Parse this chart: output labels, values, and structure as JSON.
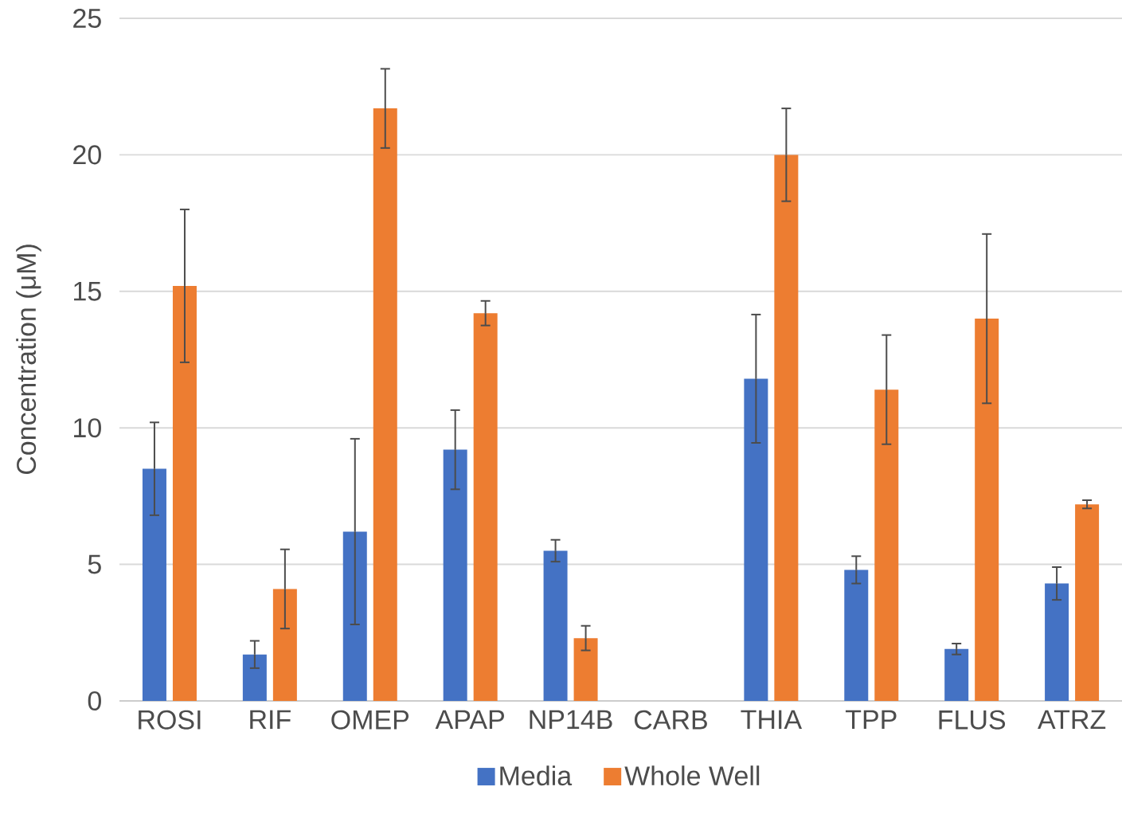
{
  "chart_data": {
    "type": "bar",
    "ylabel": "Concentration (μM)",
    "categories": [
      "ROSI",
      "RIF",
      "OMEP",
      "APAP",
      "NP14B",
      "CARB",
      "THIA",
      "TPP",
      "FLUS",
      "ATRZ"
    ],
    "series": [
      {
        "name": "Media",
        "color": "#4472c4",
        "values": [
          8.5,
          1.7,
          6.2,
          9.2,
          5.5,
          null,
          11.8,
          4.8,
          1.9,
          4.3
        ],
        "errors": [
          1.7,
          0.5,
          3.4,
          1.45,
          0.4,
          null,
          2.35,
          0.5,
          0.2,
          0.6
        ]
      },
      {
        "name": "Whole Well",
        "color": "#ed7d31",
        "values": [
          15.2,
          4.1,
          21.7,
          14.2,
          2.3,
          null,
          20.0,
          11.4,
          14.0,
          7.2
        ],
        "errors": [
          2.8,
          1.45,
          1.45,
          0.45,
          0.45,
          null,
          1.7,
          2.0,
          3.1,
          0.15
        ]
      }
    ],
    "ylim": [
      0,
      25
    ],
    "yticks": [
      0,
      5,
      10,
      15,
      20,
      25
    ],
    "grid": "y",
    "legend": "bottom"
  }
}
